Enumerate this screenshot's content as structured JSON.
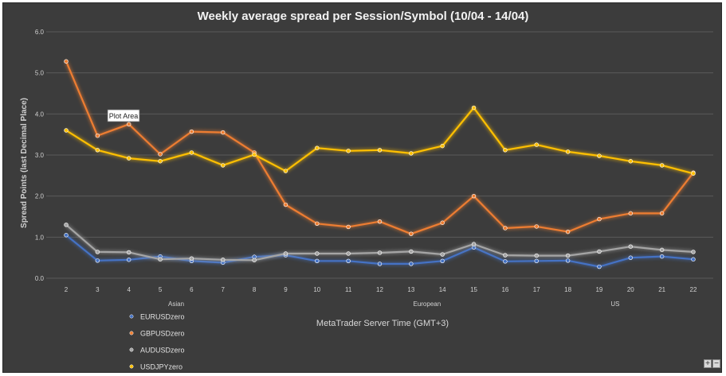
{
  "colors": {
    "background": "#3c3c3c",
    "gridline": "#5a5a5a",
    "axis_text": "#d0d0d0"
  },
  "chart_data": {
    "type": "line",
    "title": "Weekly average spread per Session/Symbol (10/04 - 14/04)",
    "xlabel": "MetaTrader Server Time (GMT+3)",
    "ylabel": "Spread Points  (last Decimal Place)",
    "x": [
      "2",
      "3",
      "4",
      "5",
      "6",
      "7",
      "8",
      "9",
      "10",
      "11",
      "12",
      "13",
      "14",
      "15",
      "16",
      "17",
      "18",
      "19",
      "20",
      "21",
      "22"
    ],
    "ylim": [
      0,
      6
    ],
    "yticks": [
      "0.0",
      "1.0",
      "2.0",
      "3.0",
      "4.0",
      "5.0",
      "6.0"
    ],
    "grid": "horizontal",
    "legend_position": "bottom-left",
    "sessions": [
      {
        "label": "Asian",
        "at": "5"
      },
      {
        "label": "European",
        "at": "13"
      },
      {
        "label": "US",
        "at": "19"
      }
    ],
    "annotation": "Plot Area",
    "series": [
      {
        "name": "EURUSDzero",
        "color": "#4472c4",
        "values": [
          1.05,
          0.43,
          0.45,
          0.53,
          0.42,
          0.38,
          0.52,
          0.56,
          0.42,
          0.42,
          0.35,
          0.35,
          0.42,
          0.75,
          0.41,
          0.42,
          0.43,
          0.28,
          0.5,
          0.53,
          0.46
        ]
      },
      {
        "name": "GBPUSDzero",
        "color": "#ed7d31",
        "values": [
          5.28,
          3.47,
          3.75,
          3.02,
          3.57,
          3.55,
          3.06,
          1.79,
          1.33,
          1.25,
          1.38,
          1.08,
          1.35,
          2.0,
          1.22,
          1.26,
          1.13,
          1.44,
          1.58,
          1.58,
          2.57
        ]
      },
      {
        "name": "AUDUSDzero",
        "color": "#a5a5a5",
        "values": [
          1.3,
          0.64,
          0.63,
          0.46,
          0.48,
          0.45,
          0.44,
          0.6,
          0.6,
          0.6,
          0.62,
          0.65,
          0.58,
          0.83,
          0.56,
          0.55,
          0.55,
          0.65,
          0.77,
          0.69,
          0.64
        ]
      },
      {
        "name": "USDJPYzero",
        "color": "#ffc000",
        "values": [
          3.6,
          3.12,
          2.92,
          2.85,
          3.06,
          2.75,
          3.01,
          2.61,
          3.17,
          3.1,
          3.12,
          3.04,
          3.22,
          4.15,
          3.12,
          3.25,
          3.08,
          2.98,
          2.85,
          2.75,
          2.55
        ]
      }
    ]
  }
}
